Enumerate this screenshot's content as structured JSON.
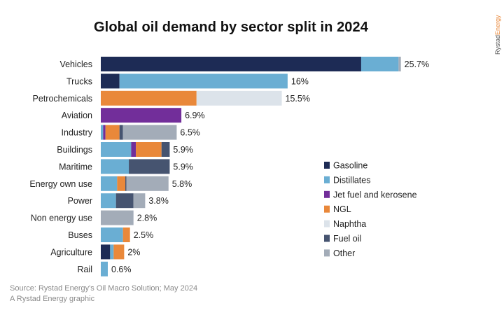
{
  "header": {
    "title": "Global oil demand by sector split in 2024",
    "brand_prefix": "Rystad",
    "brand_suffix": "Energy"
  },
  "footer": {
    "source": "Source: Rystad Energy's Oil Macro Solution; May 2024",
    "credit": "A Rystad Energy graphic"
  },
  "colors": {
    "Gasoline": "#1d2b55",
    "Distillates": "#6aaed3",
    "Jet fuel and kerosene": "#722e9a",
    "NGL": "#e9883a",
    "Naphtha": "#dce3ea",
    "Fuel oil": "#465470",
    "Other": "#a3acb8"
  },
  "chart_data": {
    "type": "bar",
    "orientation": "horizontal",
    "stacked": true,
    "title": "Global oil demand by sector split in 2024",
    "unit": "% of global oil demand",
    "xlim": [
      0,
      27
    ],
    "grid": false,
    "legend_position": "right",
    "categories": [
      "Vehicles",
      "Trucks",
      "Petrochemicals",
      "Aviation",
      "Industry",
      "Buildings",
      "Maritime",
      "Energy own use",
      "Power",
      "Non energy use",
      "Buses",
      "Agriculture",
      "Rail"
    ],
    "totals": [
      25.7,
      16,
      15.5,
      6.9,
      6.5,
      5.9,
      5.9,
      5.8,
      3.8,
      2.8,
      2.5,
      2,
      0.6
    ],
    "total_labels": [
      "25.7%",
      "16%",
      "15.5%",
      "6.9%",
      "6.5%",
      "5.9%",
      "5.9%",
      "5.8%",
      "3.8%",
      "2.8%",
      "2.5%",
      "2%",
      "0.6%"
    ],
    "series": [
      {
        "name": "Gasoline",
        "values": [
          22.3,
          1.6,
          0,
          0,
          0,
          0,
          0,
          0,
          0,
          0,
          0,
          0.8,
          0
        ]
      },
      {
        "name": "Distillates",
        "values": [
          3.2,
          14.4,
          0,
          0,
          0.2,
          2.6,
          2.4,
          1.4,
          1.3,
          0,
          1.9,
          0.3,
          0.6
        ]
      },
      {
        "name": "Jet fuel and kerosene",
        "values": [
          0,
          0,
          0,
          6.9,
          0.2,
          0.4,
          0,
          0,
          0,
          0,
          0,
          0,
          0
        ]
      },
      {
        "name": "NGL",
        "values": [
          0,
          0,
          8.2,
          0,
          1.2,
          2.2,
          0,
          0.7,
          0,
          0,
          0.6,
          0.9,
          0
        ]
      },
      {
        "name": "Naphtha",
        "values": [
          0,
          0,
          7.3,
          0,
          0,
          0,
          0,
          0,
          0,
          0,
          0,
          0,
          0
        ]
      },
      {
        "name": "Fuel oil",
        "values": [
          0,
          0,
          0,
          0,
          0.3,
          0.7,
          3.5,
          0.1,
          1.5,
          0,
          0,
          0,
          0
        ]
      },
      {
        "name": "Other",
        "values": [
          0.2,
          0,
          0,
          0,
          4.6,
          0,
          0,
          3.6,
          1.0,
          2.8,
          0,
          0,
          0
        ]
      }
    ]
  }
}
